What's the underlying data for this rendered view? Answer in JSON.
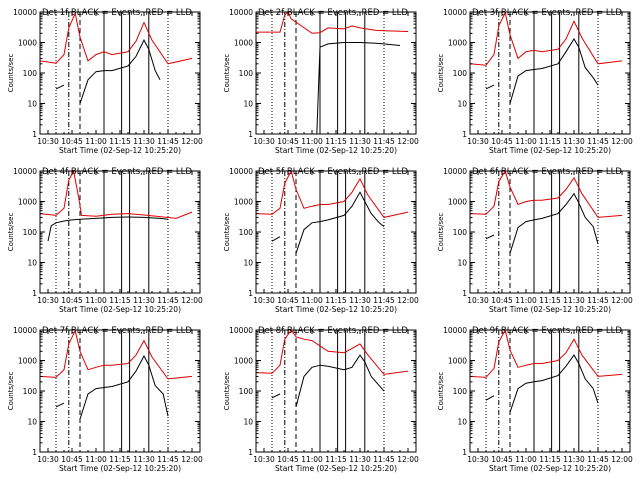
{
  "figure": {
    "ylabel": "Counts/sec",
    "xlabel": "Start Time (02-Sep-12 10:25:20)",
    "colors": {
      "events": "#000000",
      "lld": "#e00000"
    }
  },
  "chart_data": [
    {
      "type": "line",
      "title": "Det 1f BLACK = Events, RED = LLD",
      "ylabel": "Counts/sec",
      "xlabel": "Start Time (02-Sep-12 10:25:20)",
      "y_scale": "log",
      "ylim": [
        1,
        10000
      ],
      "x_ticks": [
        "10:30",
        "10:45",
        "11:00",
        "11:15",
        "11:30",
        "11:45",
        "12:00"
      ],
      "xlim": [
        "10:25",
        "12:05"
      ],
      "vertical_markers": [
        "10:43",
        "10:50",
        "11:05",
        "11:16",
        "11:21",
        "11:33",
        "11:45"
      ],
      "series": [
        {
          "name": "Events",
          "x": [
            "10:35",
            "10:40",
            "10:46",
            "10:49",
            "10:50",
            "10:55",
            "11:00",
            "11:05",
            "11:10",
            "11:20",
            "11:25",
            "11:30",
            "11:33",
            "11:37",
            "11:40"
          ],
          "values": [
            30,
            40,
            null,
            null,
            10,
            60,
            110,
            120,
            120,
            170,
            350,
            1200,
            600,
            120,
            60
          ]
        },
        {
          "name": "LLD",
          "x": [
            "10:25",
            "10:35",
            "10:40",
            "10:43",
            "10:47",
            "10:50",
            "10:55",
            "11:00",
            "11:05",
            "11:10",
            "11:20",
            "11:25",
            "11:30",
            "11:35",
            "11:45",
            "12:00"
          ],
          "values": [
            250,
            210,
            400,
            3000,
            9000,
            1500,
            250,
            400,
            500,
            400,
            500,
            1100,
            4500,
            1200,
            200,
            300
          ]
        }
      ]
    },
    {
      "type": "line",
      "title": "Det 2f BLACK = Events, RED = LLD",
      "ylabel": "Counts/sec",
      "xlabel": "Start Time (02-Sep-12 10:25:20)",
      "y_scale": "log",
      "ylim": [
        1,
        10000
      ],
      "x_ticks": [
        "10:30",
        "10:45",
        "11:00",
        "11:15",
        "11:30",
        "11:45",
        "12:00"
      ],
      "xlim": [
        "10:25",
        "12:05"
      ],
      "vertical_markers": [
        "10:43",
        "10:50",
        "11:05",
        "11:16",
        "11:21",
        "11:33",
        "11:45"
      ],
      "series": [
        {
          "name": "Events",
          "x": [
            "10:43",
            "10:45",
            "11:03",
            "11:05",
            "11:10",
            "11:20",
            "11:30",
            "11:40",
            "11:55"
          ],
          "values": [
            null,
            1,
            1,
            700,
            900,
            1000,
            1000,
            950,
            800
          ]
        },
        {
          "name": "LLD",
          "x": [
            "10:25",
            "10:40",
            "10:43",
            "10:45",
            "10:47",
            "11:00",
            "11:05",
            "11:10",
            "11:20",
            "11:25",
            "11:30",
            "11:40",
            "12:00"
          ],
          "values": [
            2200,
            2200,
            8000,
            10000,
            6000,
            2000,
            2100,
            3000,
            2800,
            3500,
            3000,
            2500,
            2300
          ]
        }
      ]
    },
    {
      "type": "line",
      "title": "Det 3f BLACK = Events, RED = LLD",
      "ylabel": "Counts/sec",
      "xlabel": "Start Time (02-Sep-12 10:25:20)",
      "y_scale": "log",
      "ylim": [
        1,
        10000
      ],
      "x_ticks": [
        "10:30",
        "10:45",
        "11:00",
        "11:15",
        "11:30",
        "11:45",
        "12:00"
      ],
      "xlim": [
        "10:25",
        "12:05"
      ],
      "vertical_markers": [
        "10:43",
        "10:50",
        "11:05",
        "11:16",
        "11:21",
        "11:33",
        "11:45"
      ],
      "series": [
        {
          "name": "Events",
          "x": [
            "10:35",
            "10:40",
            "10:46",
            "10:50",
            "10:55",
            "11:00",
            "11:05",
            "11:10",
            "11:20",
            "11:25",
            "11:30",
            "11:33",
            "11:37",
            "11:42",
            "11:45"
          ],
          "values": [
            30,
            40,
            null,
            10,
            80,
            120,
            130,
            140,
            200,
            500,
            1300,
            700,
            150,
            70,
            40
          ]
        },
        {
          "name": "LLD",
          "x": [
            "10:25",
            "10:35",
            "10:40",
            "10:43",
            "10:47",
            "10:50",
            "10:55",
            "11:00",
            "11:05",
            "11:10",
            "11:20",
            "11:25",
            "11:30",
            "11:35",
            "11:45",
            "12:00"
          ],
          "values": [
            200,
            180,
            400,
            3500,
            9500,
            1800,
            300,
            500,
            550,
            500,
            600,
            1300,
            5000,
            1400,
            200,
            250
          ]
        }
      ]
    },
    {
      "type": "line",
      "title": "Det 4f BLACK = Events, RED = LLD",
      "ylabel": "Counts/sec",
      "xlabel": "Start Time (02-Sep-12 10:25:20)",
      "y_scale": "log",
      "ylim": [
        1,
        10000
      ],
      "x_ticks": [
        "10:30",
        "10:45",
        "11:00",
        "11:15",
        "11:30",
        "11:45",
        "12:00"
      ],
      "xlim": [
        "10:25",
        "12:05"
      ],
      "vertical_markers": [
        "10:43",
        "10:50",
        "11:05",
        "11:16",
        "11:21",
        "11:33",
        "11:45"
      ],
      "series": [
        {
          "name": "Events",
          "x": [
            "10:30",
            "10:32",
            "10:35",
            "10:40",
            "10:45",
            "10:50",
            "11:00",
            "11:10",
            "11:20",
            "11:30",
            "11:40",
            "11:45"
          ],
          "values": [
            50,
            160,
            200,
            230,
            250,
            260,
            280,
            300,
            310,
            300,
            280,
            260
          ]
        },
        {
          "name": "LLD",
          "x": [
            "10:25",
            "10:35",
            "10:40",
            "10:43",
            "10:46",
            "10:49",
            "10:51",
            "11:00",
            "11:10",
            "11:20",
            "11:30",
            "11:40",
            "11:50",
            "12:00"
          ],
          "values": [
            400,
            350,
            600,
            5000,
            10000,
            1500,
            350,
            330,
            380,
            400,
            360,
            320,
            280,
            450
          ]
        }
      ]
    },
    {
      "type": "line",
      "title": "Det 5f BLACK = Events, RED = LLD",
      "ylabel": "Counts/sec",
      "xlabel": "Start Time (02-Sep-12 10:25:20)",
      "y_scale": "log",
      "ylim": [
        1,
        10000
      ],
      "x_ticks": [
        "10:30",
        "10:45",
        "11:00",
        "11:15",
        "11:30",
        "11:45",
        "12:00"
      ],
      "xlim": [
        "10:25",
        "12:05"
      ],
      "vertical_markers": [
        "10:43",
        "10:50",
        "11:05",
        "11:16",
        "11:21",
        "11:33",
        "11:45"
      ],
      "series": [
        {
          "name": "Events",
          "x": [
            "10:35",
            "10:40",
            "10:46",
            "10:50",
            "10:55",
            "11:00",
            "11:05",
            "11:10",
            "11:20",
            "11:25",
            "11:30",
            "11:33",
            "11:37",
            "11:42",
            "11:45"
          ],
          "values": [
            50,
            70,
            null,
            20,
            120,
            200,
            220,
            250,
            350,
            700,
            2000,
            1000,
            400,
            200,
            150
          ]
        },
        {
          "name": "LLD",
          "x": [
            "10:25",
            "10:35",
            "10:40",
            "10:43",
            "10:47",
            "10:50",
            "10:55",
            "11:00",
            "11:05",
            "11:10",
            "11:20",
            "11:25",
            "11:30",
            "11:35",
            "11:45",
            "12:00"
          ],
          "values": [
            400,
            380,
            600,
            4000,
            10000,
            2500,
            600,
            700,
            800,
            800,
            1000,
            2000,
            5500,
            1600,
            300,
            450
          ]
        }
      ]
    },
    {
      "type": "line",
      "title": "Det 6f BLACK = Events, RED = LLD",
      "ylabel": "Counts/sec",
      "xlabel": "Start Time (02-Sep-12 10:25:20)",
      "y_scale": "log",
      "ylim": [
        1,
        10000
      ],
      "x_ticks": [
        "10:30",
        "10:45",
        "11:00",
        "11:15",
        "11:30",
        "11:45",
        "12:00"
      ],
      "xlim": [
        "10:25",
        "12:05"
      ],
      "vertical_markers": [
        "10:43",
        "10:50",
        "11:05",
        "11:16",
        "11:21",
        "11:33",
        "11:45"
      ],
      "series": [
        {
          "name": "Events",
          "x": [
            "10:35",
            "10:40",
            "10:46",
            "10:50",
            "10:55",
            "11:00",
            "11:05",
            "11:10",
            "11:20",
            "11:25",
            "11:30",
            "11:33",
            "11:37",
            "11:42",
            "11:45"
          ],
          "values": [
            60,
            80,
            null,
            20,
            140,
            220,
            250,
            280,
            400,
            800,
            1800,
            900,
            300,
            150,
            40
          ]
        },
        {
          "name": "LLD",
          "x": [
            "10:25",
            "10:35",
            "10:40",
            "10:43",
            "10:47",
            "10:50",
            "10:55",
            "11:00",
            "11:05",
            "11:10",
            "11:20",
            "11:25",
            "11:30",
            "11:35",
            "11:45",
            "12:00"
          ],
          "values": [
            400,
            380,
            700,
            4500,
            10000,
            3000,
            800,
            1000,
            1100,
            1100,
            1300,
            2500,
            6000,
            1800,
            300,
            350
          ]
        }
      ]
    },
    {
      "type": "line",
      "title": "Det 7f BLACK = Events, RED = LLD",
      "ylabel": "Counts/sec",
      "xlabel": "Start Time (02-Sep-12 10:25:20)",
      "y_scale": "log",
      "ylim": [
        1,
        10000
      ],
      "x_ticks": [
        "10:30",
        "10:45",
        "11:00",
        "11:15",
        "11:30",
        "11:45",
        "12:00"
      ],
      "xlim": [
        "10:25",
        "12:05"
      ],
      "vertical_markers": [
        "10:43",
        "10:50",
        "11:05",
        "11:16",
        "11:21",
        "11:33",
        "11:45"
      ],
      "series": [
        {
          "name": "Events",
          "x": [
            "10:35",
            "10:40",
            "10:46",
            "10:50",
            "10:55",
            "11:00",
            "11:05",
            "11:10",
            "11:20",
            "11:25",
            "11:30",
            "11:33",
            "11:37",
            "11:42",
            "11:45"
          ],
          "values": [
            30,
            40,
            null,
            12,
            80,
            120,
            130,
            140,
            200,
            450,
            1400,
            700,
            150,
            80,
            15
          ]
        },
        {
          "name": "LLD",
          "x": [
            "10:25",
            "10:35",
            "10:40",
            "10:43",
            "10:47",
            "10:50",
            "10:55",
            "11:00",
            "11:05",
            "11:10",
            "11:20",
            "11:25",
            "11:30",
            "11:35",
            "11:45",
            "12:00"
          ],
          "values": [
            300,
            280,
            500,
            3500,
            9500,
            2000,
            500,
            600,
            700,
            700,
            800,
            1500,
            4500,
            1300,
            250,
            300
          ]
        }
      ]
    },
    {
      "type": "line",
      "title": "Det 8f BLACK = Events, RED = LLD",
      "ylabel": "Counts/sec",
      "xlabel": "Start Time (02-Sep-12 10:25:20)",
      "y_scale": "log",
      "ylim": [
        1,
        10000
      ],
      "x_ticks": [
        "10:30",
        "10:45",
        "11:00",
        "11:15",
        "11:30",
        "11:45",
        "12:00"
      ],
      "xlim": [
        "10:25",
        "12:05"
      ],
      "vertical_markers": [
        "10:43",
        "10:50",
        "11:05",
        "11:16",
        "11:21",
        "11:33",
        "11:45"
      ],
      "series": [
        {
          "name": "Events",
          "x": [
            "10:35",
            "10:40",
            "10:46",
            "10:50",
            "10:55",
            "11:00",
            "11:05",
            "11:10",
            "11:20",
            "11:25",
            "11:30",
            "11:33",
            "11:37",
            "11:42",
            "11:45"
          ],
          "values": [
            60,
            80,
            null,
            30,
            300,
            600,
            700,
            650,
            500,
            600,
            1500,
            900,
            300,
            150,
            100
          ]
        },
        {
          "name": "LLD",
          "x": [
            "10:25",
            "10:35",
            "10:40",
            "10:43",
            "10:47",
            "10:50",
            "10:55",
            "11:00",
            "11:05",
            "11:10",
            "11:20",
            "11:25",
            "11:30",
            "11:35",
            "11:45",
            "12:00"
          ],
          "values": [
            400,
            380,
            700,
            5000,
            10000,
            6000,
            5000,
            4500,
            3000,
            2000,
            1800,
            2500,
            3500,
            1500,
            350,
            450
          ]
        }
      ]
    },
    {
      "type": "line",
      "title": "Det 9f BLACK = Events, RED = LLD",
      "ylabel": "Counts/sec",
      "xlabel": "Start Time (02-Sep-12 10:25:20)",
      "y_scale": "log",
      "ylim": [
        1,
        10000
      ],
      "x_ticks": [
        "10:30",
        "10:45",
        "11:00",
        "11:15",
        "11:30",
        "11:45",
        "12:00"
      ],
      "xlim": [
        "10:25",
        "12:05"
      ],
      "vertical_markers": [
        "10:43",
        "10:50",
        "11:05",
        "11:16",
        "11:21",
        "11:33",
        "11:45"
      ],
      "series": [
        {
          "name": "Events",
          "x": [
            "10:35",
            "10:40",
            "10:46",
            "10:50",
            "10:55",
            "11:00",
            "11:05",
            "11:10",
            "11:20",
            "11:25",
            "11:30",
            "11:33",
            "11:37",
            "11:42",
            "11:45"
          ],
          "values": [
            50,
            70,
            null,
            20,
            120,
            180,
            200,
            220,
            320,
            650,
            1500,
            800,
            250,
            120,
            40
          ]
        },
        {
          "name": "LLD",
          "x": [
            "10:25",
            "10:35",
            "10:40",
            "10:43",
            "10:47",
            "10:50",
            "10:55",
            "11:00",
            "11:05",
            "11:10",
            "11:20",
            "11:25",
            "11:30",
            "11:35",
            "11:45",
            "12:00"
          ],
          "values": [
            300,
            280,
            550,
            4000,
            10000,
            2200,
            600,
            700,
            800,
            800,
            1000,
            1800,
            5000,
            1500,
            300,
            350
          ]
        }
      ]
    }
  ]
}
